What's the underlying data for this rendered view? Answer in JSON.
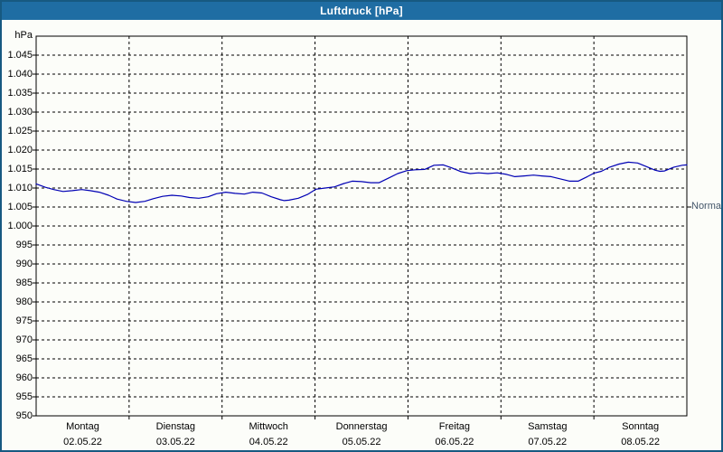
{
  "window": {
    "title": "Luftdruck [hPa]"
  },
  "chart_data": {
    "type": "line",
    "title": "Luftdruck [hPa]",
    "unit_label": "hPa",
    "xlabel": "",
    "ylabel": "hPa",
    "ylim": [
      950,
      1050
    ],
    "grid": true,
    "legend_position": "none",
    "yticks": [
      {
        "value": 1045,
        "label": "1.045"
      },
      {
        "value": 1040,
        "label": "1.040"
      },
      {
        "value": 1035,
        "label": "1.035"
      },
      {
        "value": 1030,
        "label": "1.030"
      },
      {
        "value": 1025,
        "label": "1.025"
      },
      {
        "value": 1020,
        "label": "1.020"
      },
      {
        "value": 1015,
        "label": "1.015"
      },
      {
        "value": 1010,
        "label": "1.010"
      },
      {
        "value": 1005,
        "label": "1.005"
      },
      {
        "value": 1000,
        "label": "1.000"
      },
      {
        "value": 995,
        "label": "995"
      },
      {
        "value": 990,
        "label": "990"
      },
      {
        "value": 985,
        "label": "985"
      },
      {
        "value": 980,
        "label": "980"
      },
      {
        "value": 975,
        "label": "975"
      },
      {
        "value": 970,
        "label": "970"
      },
      {
        "value": 965,
        "label": "965"
      },
      {
        "value": 960,
        "label": "960"
      },
      {
        "value": 955,
        "label": "955"
      },
      {
        "value": 950,
        "label": "950"
      }
    ],
    "days": [
      {
        "name": "Montag",
        "date": "02.05.22"
      },
      {
        "name": "Dienstag",
        "date": "03.05.22"
      },
      {
        "name": "Mittwoch",
        "date": "04.05.22"
      },
      {
        "name": "Donnerstag",
        "date": "05.05.22"
      },
      {
        "name": "Freitag",
        "date": "06.05.22"
      },
      {
        "name": "Samstag",
        "date": "07.05.22"
      },
      {
        "name": "Sonntag",
        "date": "08.05.22"
      }
    ],
    "normal": {
      "label": "Normal",
      "value": 1005
    },
    "series": [
      {
        "name": "Luftdruck",
        "color": "#0000b4",
        "points": [
          [
            0.0,
            1011.1
          ],
          [
            0.1,
            1010.2
          ],
          [
            0.19,
            1009.6
          ],
          [
            0.29,
            1009.1
          ],
          [
            0.39,
            1009.3
          ],
          [
            0.49,
            1009.6
          ],
          [
            0.58,
            1009.3
          ],
          [
            0.68,
            1008.9
          ],
          [
            0.78,
            1008.1
          ],
          [
            0.87,
            1007.1
          ],
          [
            0.97,
            1006.5
          ],
          [
            1.07,
            1006.2
          ],
          [
            1.17,
            1006.5
          ],
          [
            1.26,
            1007.2
          ],
          [
            1.36,
            1007.8
          ],
          [
            1.46,
            1008.1
          ],
          [
            1.56,
            1007.9
          ],
          [
            1.65,
            1007.5
          ],
          [
            1.75,
            1007.3
          ],
          [
            1.85,
            1007.7
          ],
          [
            1.94,
            1008.5
          ],
          [
            2.04,
            1008.9
          ],
          [
            2.14,
            1008.6
          ],
          [
            2.24,
            1008.4
          ],
          [
            2.33,
            1008.9
          ],
          [
            2.43,
            1008.7
          ],
          [
            2.53,
            1007.7
          ],
          [
            2.63,
            1006.9
          ],
          [
            2.67,
            1006.7
          ],
          [
            2.72,
            1006.8
          ],
          [
            2.82,
            1007.3
          ],
          [
            2.92,
            1008.3
          ],
          [
            3.01,
            1009.7
          ],
          [
            3.11,
            1010.0
          ],
          [
            3.21,
            1010.3
          ],
          [
            3.31,
            1011.2
          ],
          [
            3.4,
            1011.8
          ],
          [
            3.5,
            1011.7
          ],
          [
            3.6,
            1011.4
          ],
          [
            3.69,
            1011.4
          ],
          [
            3.79,
            1012.6
          ],
          [
            3.89,
            1013.8
          ],
          [
            3.99,
            1014.6
          ],
          [
            4.08,
            1014.8
          ],
          [
            4.18,
            1014.9
          ],
          [
            4.28,
            1016.0
          ],
          [
            4.38,
            1016.1
          ],
          [
            4.47,
            1015.3
          ],
          [
            4.57,
            1014.3
          ],
          [
            4.67,
            1013.8
          ],
          [
            4.76,
            1014.0
          ],
          [
            4.86,
            1013.8
          ],
          [
            4.96,
            1014.0
          ],
          [
            5.06,
            1013.6
          ],
          [
            5.15,
            1013.0
          ],
          [
            5.25,
            1013.2
          ],
          [
            5.35,
            1013.4
          ],
          [
            5.44,
            1013.2
          ],
          [
            5.54,
            1013.0
          ],
          [
            5.64,
            1012.4
          ],
          [
            5.74,
            1011.8
          ],
          [
            5.83,
            1011.8
          ],
          [
            5.93,
            1013.0
          ],
          [
            6.0,
            1013.9
          ],
          [
            6.08,
            1014.4
          ],
          [
            6.17,
            1015.5
          ],
          [
            6.27,
            1016.3
          ],
          [
            6.37,
            1016.8
          ],
          [
            6.47,
            1016.6
          ],
          [
            6.56,
            1015.7
          ],
          [
            6.66,
            1014.7
          ],
          [
            6.71,
            1014.4
          ],
          [
            6.76,
            1014.5
          ],
          [
            6.86,
            1015.5
          ],
          [
            6.95,
            1016.0
          ],
          [
            7.0,
            1016.1
          ]
        ]
      }
    ],
    "colors": {
      "titlebar_bg": "#1f6da3",
      "window_border": "#175981",
      "background": "#fcfdf9",
      "line": "#0000b4",
      "grid": "#000000",
      "text": "#000000",
      "title_text": "#ffffff",
      "normal_text": "#44566b"
    }
  }
}
